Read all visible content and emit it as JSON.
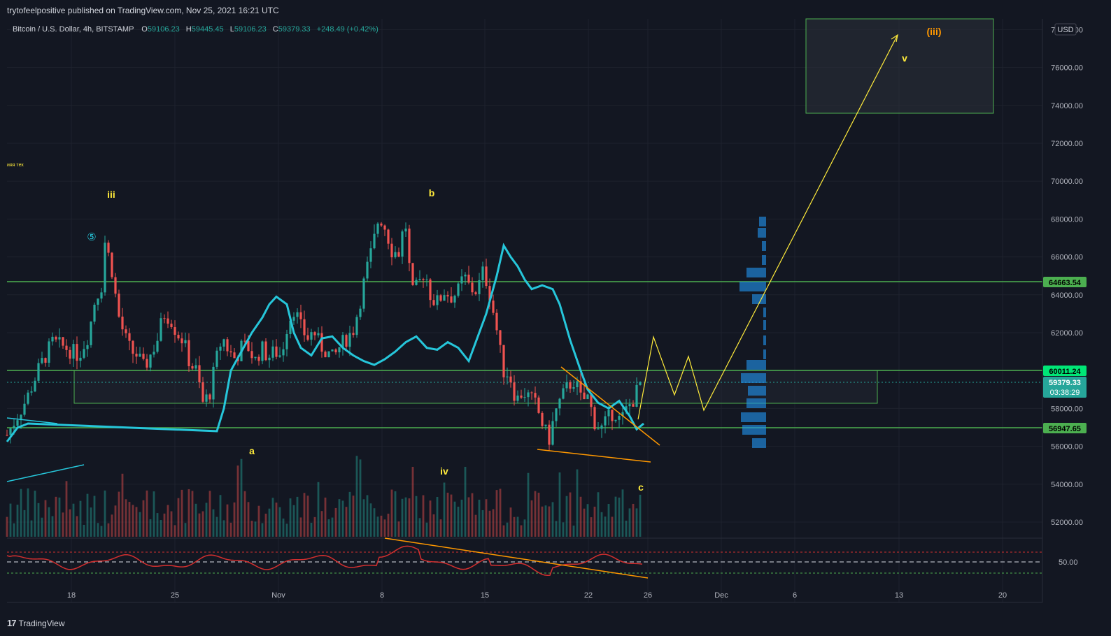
{
  "header": {
    "publisher": "trytofeelpositive published on TradingView.com, Nov 25, 2021 16:21 UTC"
  },
  "legend": {
    "symbol": "Bitcoin / U.S. Dollar, 4h, BITSTAMP",
    "open_label": "O",
    "open": "59106.23",
    "high_label": "H",
    "high": "59445.45",
    "low_label": "L",
    "low": "59106.23",
    "close_label": "C",
    "close": "59379.33",
    "change": "+248.49 (+0.42%)"
  },
  "currency": "USD",
  "small_label": "ияя тех",
  "price_badges": {
    "upper": "64663.54",
    "mid": "60011.24",
    "current": "59379.33",
    "countdown": "03:38:29",
    "lower": "56947.65"
  },
  "oscillator_label": "50.00",
  "wave_labels": {
    "iii": "iii",
    "circle5": "⑤",
    "b": "b",
    "a": "a",
    "iv": "iv",
    "c": "c",
    "v": "v",
    "iii_paren": "(iii)"
  },
  "footer": {
    "brand": "TradingView",
    "logo_mark": "17"
  },
  "colors": {
    "background": "#131722",
    "up": "#26a69a",
    "down": "#ef5350",
    "ma": "#26c6da",
    "green_line": "#4caf50",
    "orange": "#ff9800",
    "yellow": "#ffeb3b",
    "osc": "#d32f2f"
  },
  "chart_data": {
    "type": "candlestick",
    "symbol": "BTCUSD",
    "timeframe": "4h",
    "y_axis_ticks": [
      52000,
      54000,
      56000,
      58000,
      60000,
      62000,
      64000,
      66000,
      68000,
      70000,
      72000,
      74000,
      76000,
      78000
    ],
    "ylim": [
      51000,
      78500
    ],
    "x_axis_ticks": [
      "18",
      "25",
      "Nov",
      "8",
      "15",
      "22",
      "26",
      "Dec",
      "6",
      "13",
      "20"
    ],
    "horizontal_levels": [
      64663.54,
      60011.24,
      56947.65
    ],
    "ma_path": [
      [
        60,
        56800
      ],
      [
        62,
        58000
      ],
      [
        64,
        60000
      ],
      [
        67,
        61000
      ],
      [
        70,
        62000
      ],
      [
        73,
        62800
      ],
      [
        75,
        63500
      ],
      [
        77,
        63900
      ],
      [
        80,
        63500
      ],
      [
        82,
        62000
      ],
      [
        84,
        61200
      ],
      [
        87,
        60800
      ],
      [
        90,
        61700
      ],
      [
        93,
        61800
      ],
      [
        96,
        61200
      ],
      [
        99,
        60800
      ],
      [
        102,
        60500
      ],
      [
        105,
        60300
      ],
      [
        108,
        60600
      ],
      [
        111,
        61000
      ],
      [
        114,
        61500
      ],
      [
        117,
        61800
      ],
      [
        120,
        61200
      ],
      [
        123,
        61100
      ],
      [
        126,
        61500
      ],
      [
        129,
        61200
      ],
      [
        132,
        60500
      ],
      [
        134,
        61500
      ],
      [
        137,
        63000
      ],
      [
        140,
        65000
      ],
      [
        142,
        66600
      ],
      [
        144,
        66000
      ],
      [
        146,
        65500
      ],
      [
        148,
        64800
      ],
      [
        150,
        64300
      ],
      [
        153,
        64500
      ],
      [
        156,
        64300
      ],
      [
        158,
        63500
      ],
      [
        161,
        61600
      ],
      [
        164,
        60000
      ],
      [
        166,
        59000
      ],
      [
        169,
        58300
      ],
      [
        172,
        58000
      ],
      [
        175,
        58400
      ],
      [
        178,
        57600
      ],
      [
        180,
        56900
      ],
      [
        182,
        57200
      ]
    ],
    "volume_note": "volume histogram bars shown in lower part of main pane",
    "oscillator": {
      "level": 50.0,
      "upper_band": "dashed red",
      "lower_band": "dashed green"
    }
  }
}
